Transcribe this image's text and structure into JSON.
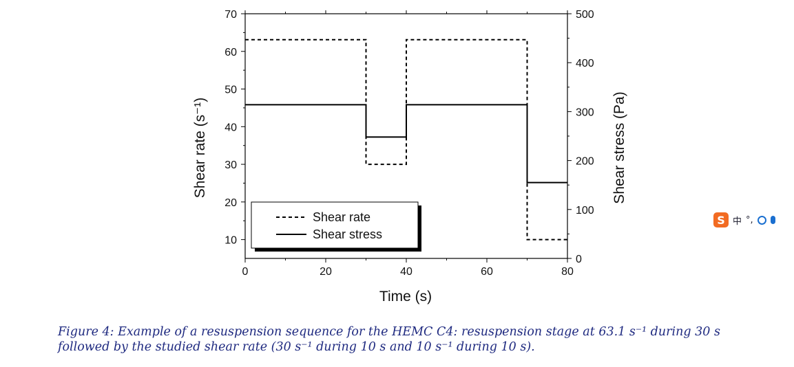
{
  "chart_data": {
    "type": "line",
    "xlabel": "Time (s)",
    "ylabel_left": "Shear rate (s⁻¹)",
    "ylabel_right": "Shear stress (Pa)",
    "xlim": [
      0,
      80
    ],
    "ylim_left": [
      5,
      70
    ],
    "ylim_right": [
      0,
      500
    ],
    "x_ticks": [
      0,
      20,
      40,
      60,
      80
    ],
    "y_left_ticks": [
      10,
      20,
      30,
      40,
      50,
      60,
      70
    ],
    "y_right_ticks": [
      0,
      100,
      200,
      300,
      400,
      500
    ],
    "grid": false,
    "legend_position": "bottom-left",
    "series": [
      {
        "name": "Shear rate",
        "axis": "left",
        "style": "dashed",
        "x": [
          0,
          30,
          30,
          40,
          40,
          70,
          70,
          80
        ],
        "y": [
          63.1,
          63.1,
          30,
          30,
          63.1,
          63.1,
          10,
          10
        ]
      },
      {
        "name": "Shear stress",
        "axis": "right",
        "style": "solid",
        "x": [
          0,
          30,
          30,
          40,
          40,
          70,
          70,
          80
        ],
        "y": [
          314,
          314,
          248,
          248,
          314,
          314,
          155,
          155
        ]
      }
    ]
  },
  "caption": {
    "line1": "Figure 4: Example of a resuspension sequence for the HEMC C4: resuspension stage at 63.1 s⁻¹ during 30 s",
    "line2": "followed by the studied shear rate (30 s⁻¹ during 10 s and 10 s⁻¹ during 10 s)."
  },
  "ime_toolbar": {
    "logo": "S",
    "mode": "中",
    "punct": "°,",
    "icons": [
      "smiley-icon",
      "microphone-icon"
    ]
  }
}
